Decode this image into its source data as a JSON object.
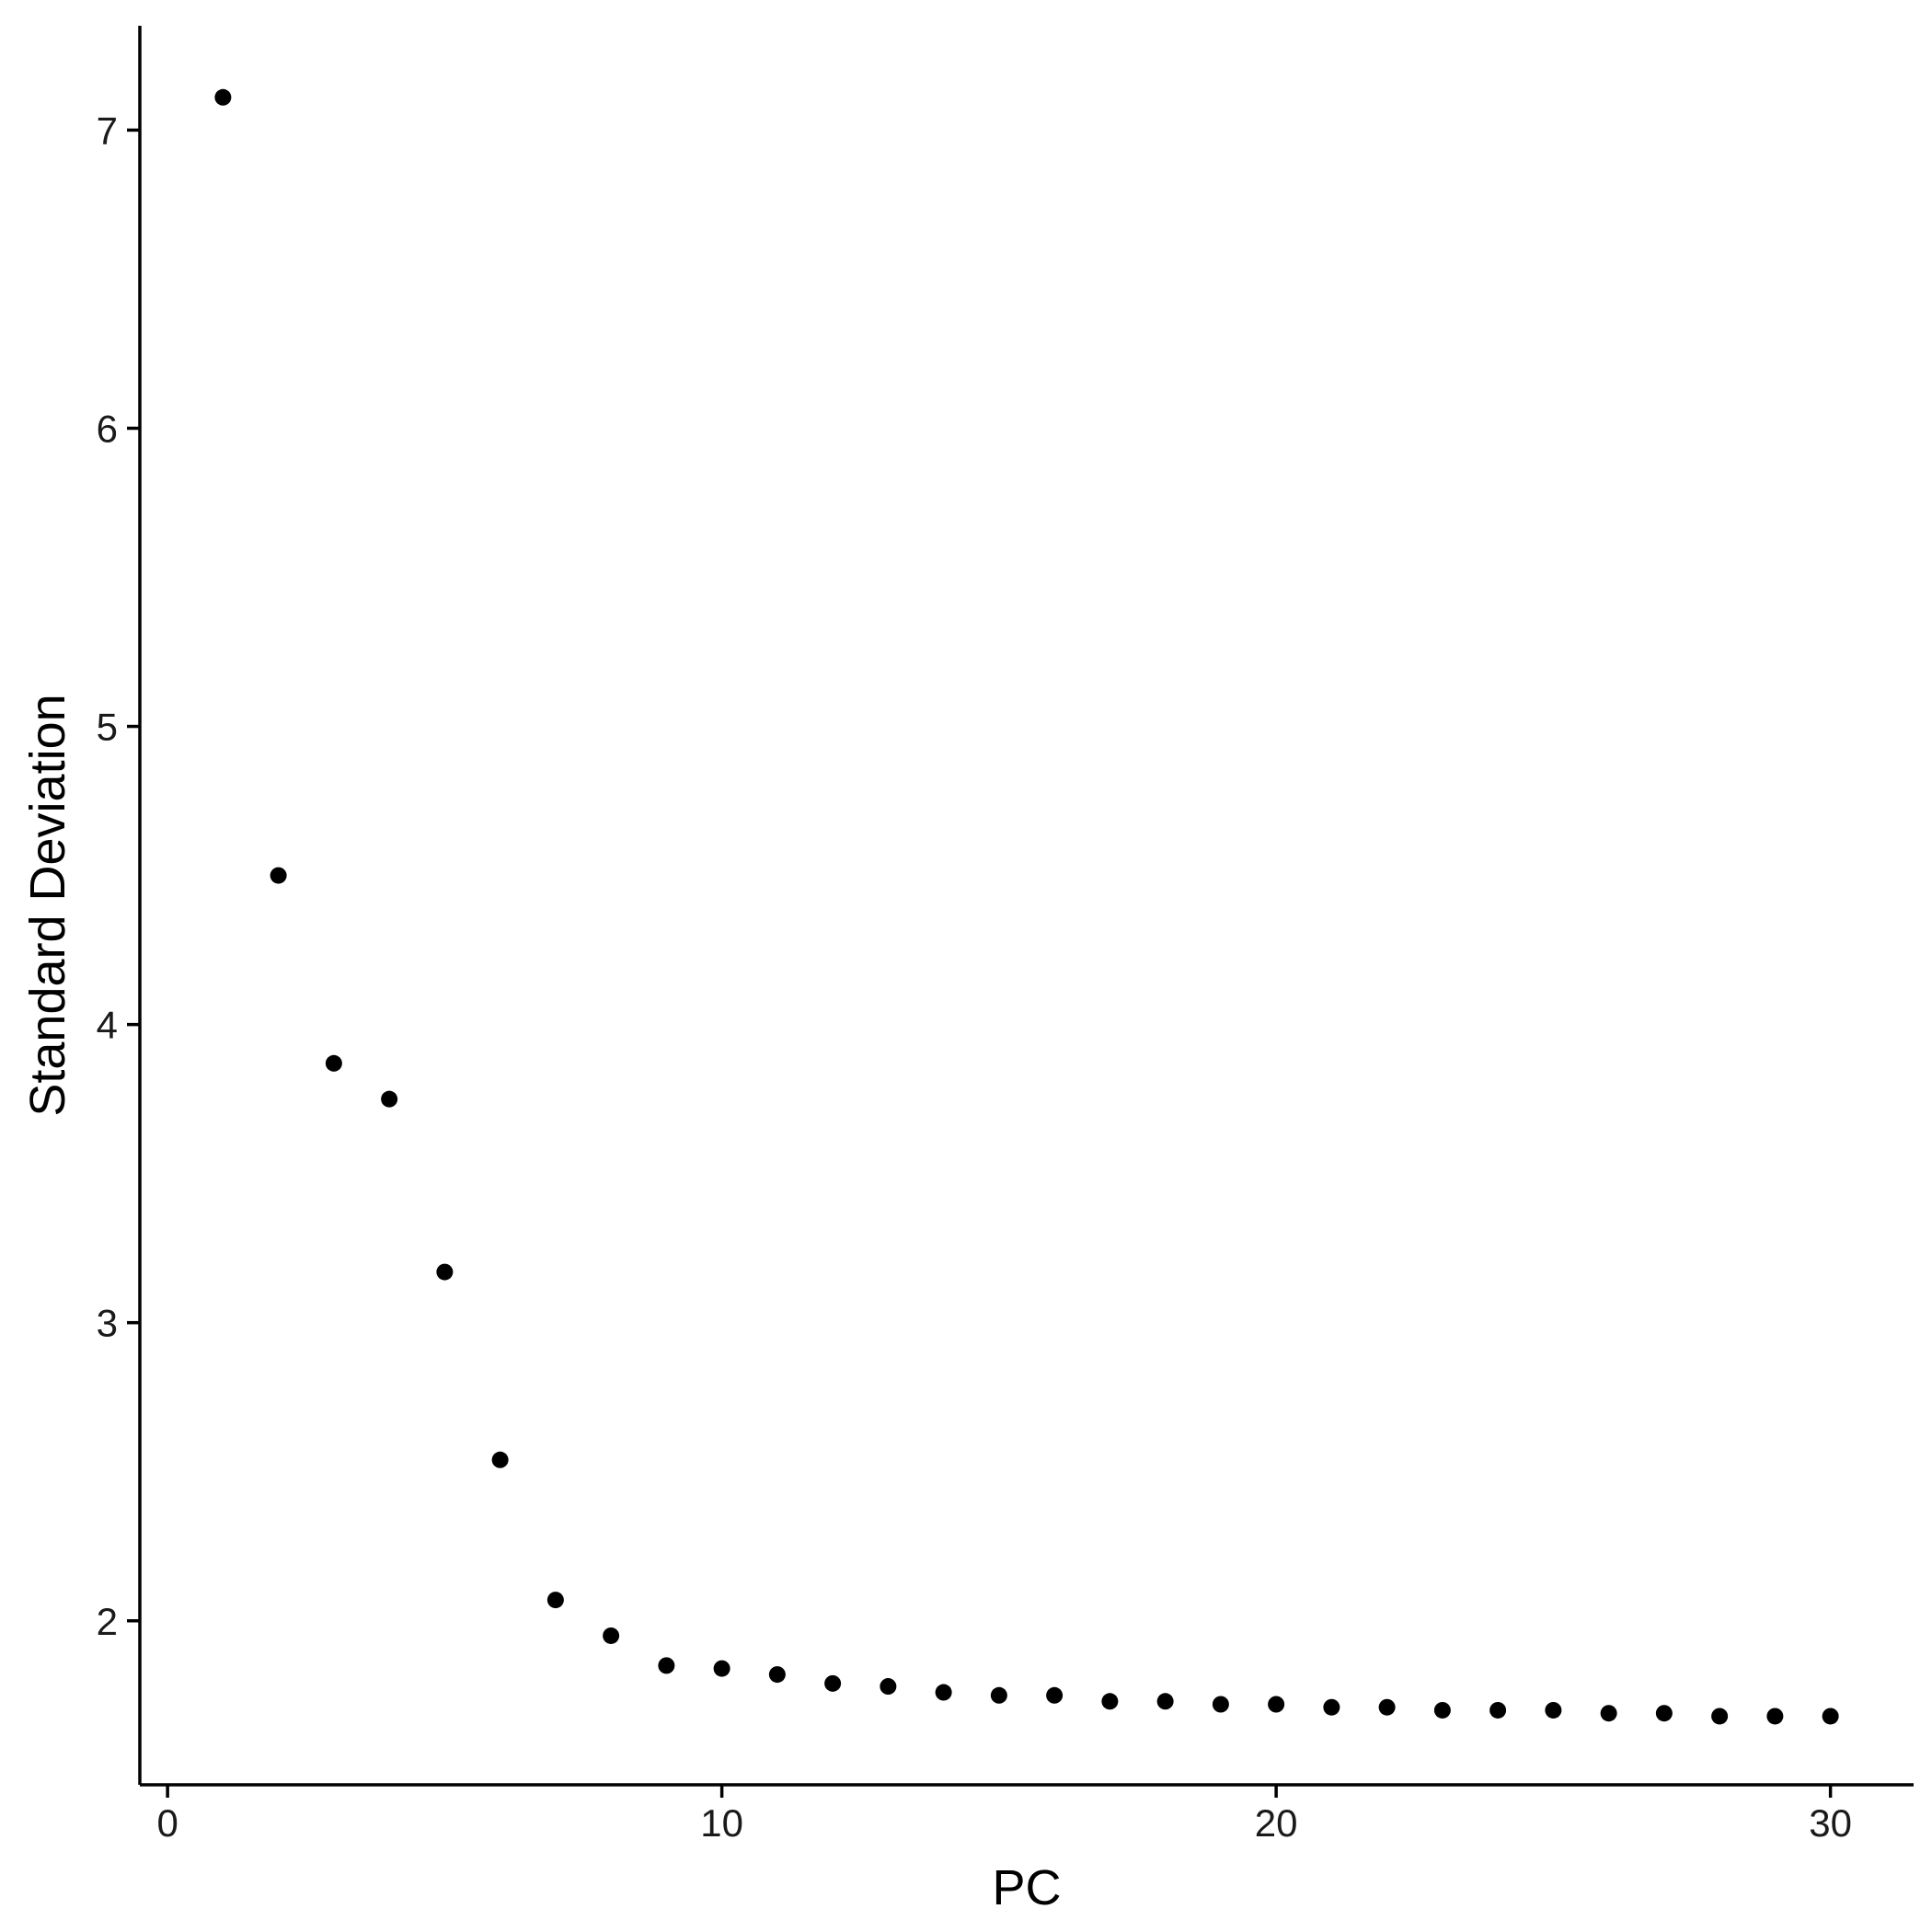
{
  "chart_data": {
    "type": "scatter",
    "title": "",
    "xlabel": "PC",
    "ylabel": "Standard Deviation",
    "xlim": [
      -0.5,
      31.5
    ],
    "ylim": [
      1.45,
      7.35
    ],
    "xticks": [
      0,
      10,
      20,
      30
    ],
    "yticks": [
      2,
      3,
      4,
      5,
      6,
      7
    ],
    "xtick_labels": [
      "0",
      "10",
      "20",
      "30"
    ],
    "ytick_labels": [
      "2",
      "3",
      "4",
      "5",
      "6",
      "7"
    ],
    "grid": false,
    "legend": "none",
    "point_color": "#000000",
    "series": [
      {
        "x": [
          1,
          2,
          3,
          4,
          5,
          6,
          7,
          8,
          9,
          10,
          11,
          12,
          13,
          14,
          15,
          16,
          17,
          18,
          19,
          20,
          21,
          22,
          23,
          24,
          25,
          26,
          27,
          28,
          29,
          30
        ],
        "y": [
          7.11,
          4.5,
          3.87,
          3.75,
          3.17,
          2.54,
          2.07,
          1.95,
          1.85,
          1.84,
          1.82,
          1.79,
          1.78,
          1.76,
          1.75,
          1.75,
          1.73,
          1.73,
          1.72,
          1.72,
          1.71,
          1.71,
          1.7,
          1.7,
          1.7,
          1.69,
          1.69,
          1.68,
          1.68,
          1.68
        ]
      }
    ]
  }
}
